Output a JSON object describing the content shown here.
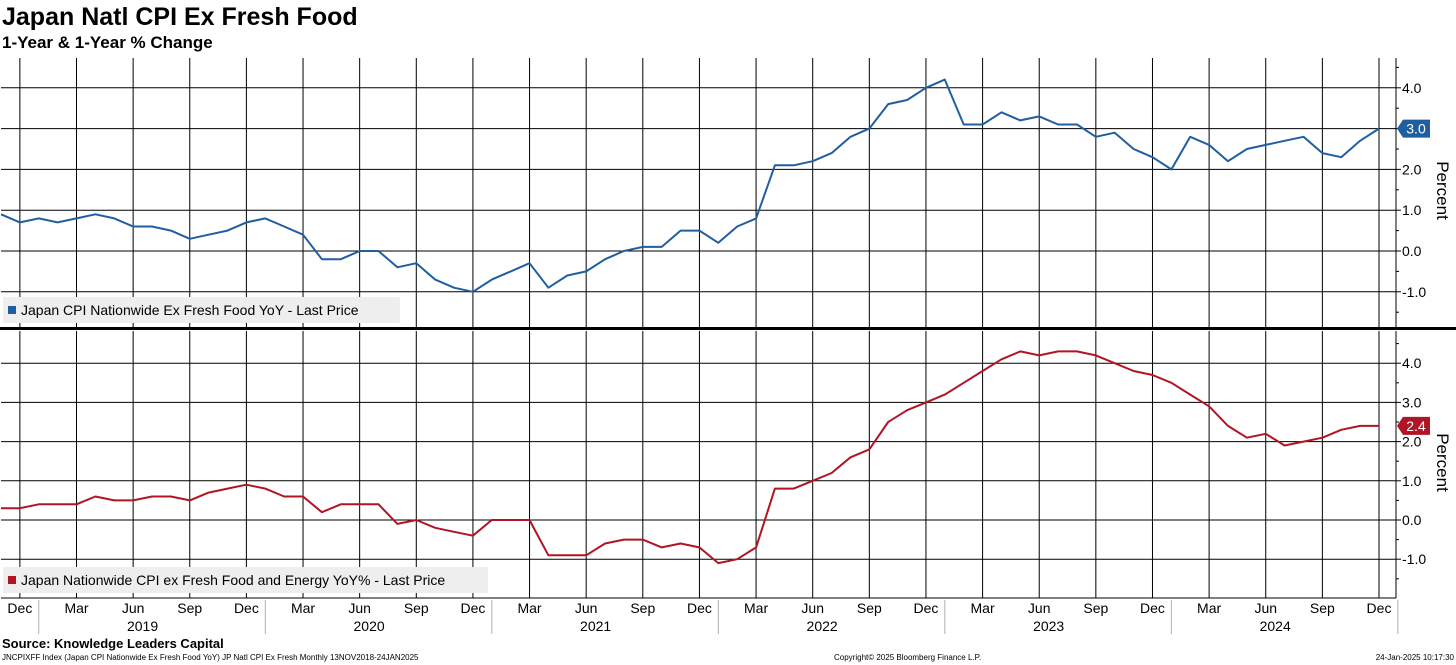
{
  "title": "Japan Natl CPI Ex Fresh Food",
  "subtitle": "1-Year & 1-Year % Change",
  "source": "Source: Knowledge Leaders Capital",
  "footer": {
    "left": "JNCPIXFF Index (Japan CPI Nationwide Ex Fresh Food YoY) JP Natl CPI Ex Fresh  Monthly 13NOV2018-24JAN2025",
    "center": "Copyright© 2025 Bloomberg Finance L.P.",
    "right": "24-Jan-2025 10:17:30"
  },
  "colors": {
    "top": "#1f5fa0",
    "bottom": "#b01525"
  },
  "chart_data": [
    {
      "type": "line",
      "panel": "top",
      "x": [
        "Nov 2018",
        "Dec 2018",
        "Jan 2019",
        "Feb 2019",
        "Mar 2019",
        "Apr 2019",
        "May 2019",
        "Jun 2019",
        "Jul 2019",
        "Aug 2019",
        "Sep 2019",
        "Oct 2019",
        "Nov 2019",
        "Dec 2019",
        "Jan 2020",
        "Feb 2020",
        "Mar 2020",
        "Apr 2020",
        "May 2020",
        "Jun 2020",
        "Jul 2020",
        "Aug 2020",
        "Sep 2020",
        "Oct 2020",
        "Nov 2020",
        "Dec 2020",
        "Jan 2021",
        "Feb 2021",
        "Mar 2021",
        "Apr 2021",
        "May 2021",
        "Jun 2021",
        "Jul 2021",
        "Aug 2021",
        "Sep 2021",
        "Oct 2021",
        "Nov 2021",
        "Dec 2021",
        "Jan 2022",
        "Feb 2022",
        "Mar 2022",
        "Apr 2022",
        "May 2022",
        "Jun 2022",
        "Jul 2022",
        "Aug 2022",
        "Sep 2022",
        "Oct 2022",
        "Nov 2022",
        "Dec 2022",
        "Jan 2023",
        "Feb 2023",
        "Mar 2023",
        "Apr 2023",
        "May 2023",
        "Jun 2023",
        "Jul 2023",
        "Aug 2023",
        "Sep 2023",
        "Oct 2023",
        "Nov 2023",
        "Dec 2023",
        "Jan 2024",
        "Feb 2024",
        "Mar 2024",
        "Apr 2024",
        "May 2024",
        "Jun 2024",
        "Jul 2024",
        "Aug 2024",
        "Sep 2024",
        "Oct 2024",
        "Nov 2024",
        "Dec 2024"
      ],
      "series": [
        {
          "name": "Japan CPI Nationwide Ex Fresh Food YoY - Last Price",
          "values": [
            0.9,
            0.7,
            0.8,
            0.7,
            0.8,
            0.9,
            0.8,
            0.6,
            0.6,
            0.5,
            0.3,
            0.4,
            0.5,
            0.7,
            0.8,
            0.6,
            0.4,
            -0.2,
            -0.2,
            0.0,
            0.0,
            -0.4,
            -0.3,
            -0.7,
            -0.9,
            -1.0,
            -0.7,
            -0.5,
            -0.3,
            -0.9,
            -0.6,
            -0.5,
            -0.2,
            0.0,
            0.1,
            0.1,
            0.5,
            0.5,
            0.2,
            0.6,
            0.8,
            2.1,
            2.1,
            2.2,
            2.4,
            2.8,
            3.0,
            3.6,
            3.7,
            4.0,
            4.2,
            3.1,
            3.1,
            3.4,
            3.2,
            3.3,
            3.1,
            3.1,
            2.8,
            2.9,
            2.5,
            2.3,
            2.0,
            2.8,
            2.6,
            2.2,
            2.5,
            2.6,
            2.7,
            2.8,
            2.4,
            2.3,
            2.7,
            3.0
          ]
        }
      ],
      "last_label": "3.0",
      "ylabel": "Percent",
      "yticks": [
        "4.0",
        "3.0",
        "2.0",
        "1.0",
        "0.0",
        "-1.0"
      ],
      "ylim": [
        -1.75,
        4.65
      ]
    },
    {
      "type": "line",
      "panel": "bottom",
      "x": [
        "Nov 2018",
        "Dec 2018",
        "Jan 2019",
        "Feb 2019",
        "Mar 2019",
        "Apr 2019",
        "May 2019",
        "Jun 2019",
        "Jul 2019",
        "Aug 2019",
        "Sep 2019",
        "Oct 2019",
        "Nov 2019",
        "Dec 2019",
        "Jan 2020",
        "Feb 2020",
        "Mar 2020",
        "Apr 2020",
        "May 2020",
        "Jun 2020",
        "Jul 2020",
        "Aug 2020",
        "Sep 2020",
        "Oct 2020",
        "Nov 2020",
        "Dec 2020",
        "Jan 2021",
        "Feb 2021",
        "Mar 2021",
        "Apr 2021",
        "May 2021",
        "Jun 2021",
        "Jul 2021",
        "Aug 2021",
        "Sep 2021",
        "Oct 2021",
        "Nov 2021",
        "Dec 2021",
        "Jan 2022",
        "Feb 2022",
        "Mar 2022",
        "Apr 2022",
        "May 2022",
        "Jun 2022",
        "Jul 2022",
        "Aug 2022",
        "Sep 2022",
        "Oct 2022",
        "Nov 2022",
        "Dec 2022",
        "Jan 2023",
        "Feb 2023",
        "Mar 2023",
        "Apr 2023",
        "May 2023",
        "Jun 2023",
        "Jul 2023",
        "Aug 2023",
        "Sep 2023",
        "Oct 2023",
        "Nov 2023",
        "Dec 2023",
        "Jan 2024",
        "Feb 2024",
        "Mar 2024",
        "Apr 2024",
        "May 2024",
        "Jun 2024",
        "Jul 2024",
        "Aug 2024",
        "Sep 2024",
        "Oct 2024",
        "Nov 2024",
        "Dec 2024"
      ],
      "series": [
        {
          "name": "Japan Nationwide CPI ex Fresh Food and Energy YoY% - Last Price",
          "values": [
            0.3,
            0.3,
            0.4,
            0.4,
            0.4,
            0.6,
            0.5,
            0.5,
            0.6,
            0.6,
            0.5,
            0.7,
            0.8,
            0.9,
            0.8,
            0.6,
            0.6,
            0.2,
            0.4,
            0.4,
            0.4,
            -0.1,
            0.0,
            -0.2,
            -0.3,
            -0.4,
            0.0,
            0.0,
            0.0,
            -0.9,
            -0.9,
            -0.9,
            -0.6,
            -0.5,
            -0.5,
            -0.7,
            -0.6,
            -0.7,
            -1.1,
            -1.0,
            -0.7,
            0.8,
            0.8,
            1.0,
            1.2,
            1.6,
            1.8,
            2.5,
            2.8,
            3.0,
            3.2,
            3.5,
            3.8,
            4.1,
            4.3,
            4.2,
            4.3,
            4.3,
            4.2,
            4.0,
            3.8,
            3.7,
            3.5,
            3.2,
            2.9,
            2.4,
            2.1,
            2.2,
            1.9,
            2.0,
            2.1,
            2.3,
            2.4,
            2.4
          ]
        }
      ],
      "last_label": "2.4",
      "ylabel": "Percent",
      "yticks": [
        "4.0",
        "3.0",
        "2.0",
        "1.0",
        "0.0",
        "-1.0"
      ],
      "ylim": [
        -2.0,
        4.9
      ]
    }
  ],
  "xaxis": {
    "months": [
      "Dec",
      "Mar",
      "Jun",
      "Sep",
      "Dec",
      "Mar",
      "Jun",
      "Sep",
      "Dec",
      "Mar",
      "Jun",
      "Sep",
      "Dec",
      "Mar",
      "Jun",
      "Sep",
      "Dec",
      "Mar",
      "Jun",
      "Sep",
      "Dec",
      "Mar",
      "Jun",
      "Sep",
      "Dec"
    ],
    "years": [
      "2019",
      "2020",
      "2021",
      "2022",
      "2023",
      "2024"
    ]
  }
}
